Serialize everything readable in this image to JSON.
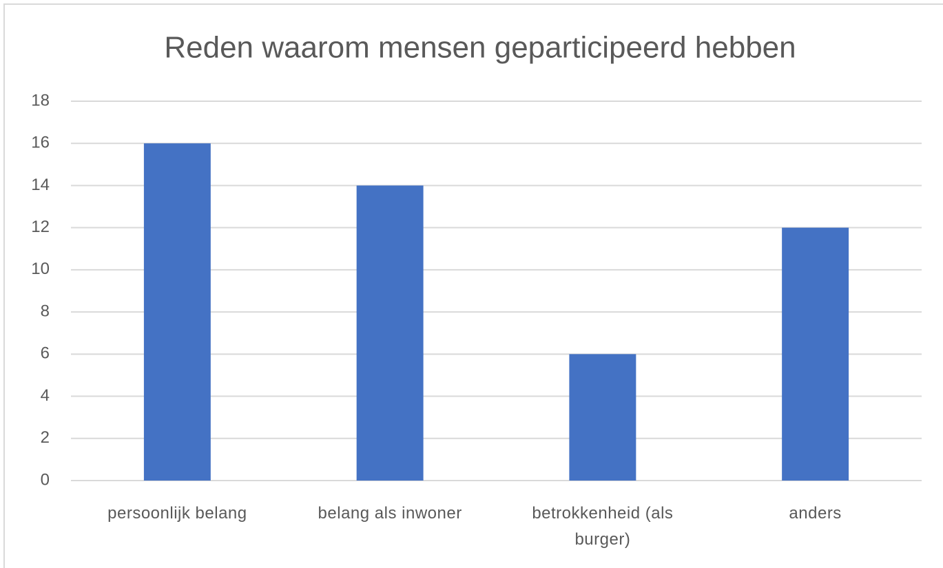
{
  "chart_data": {
    "type": "bar",
    "title": "Reden waarom mensen geparticipeerd hebben",
    "categories": [
      "persoonlijk belang",
      "belang als inwoner",
      "betrokkenheid (als burger)",
      "anders"
    ],
    "values": [
      16,
      14,
      6,
      12
    ],
    "color": "#4472c4",
    "ylim": [
      0,
      18
    ],
    "yticks": [
      0,
      2,
      4,
      6,
      8,
      10,
      12,
      14,
      16,
      18
    ],
    "grid": true
  }
}
